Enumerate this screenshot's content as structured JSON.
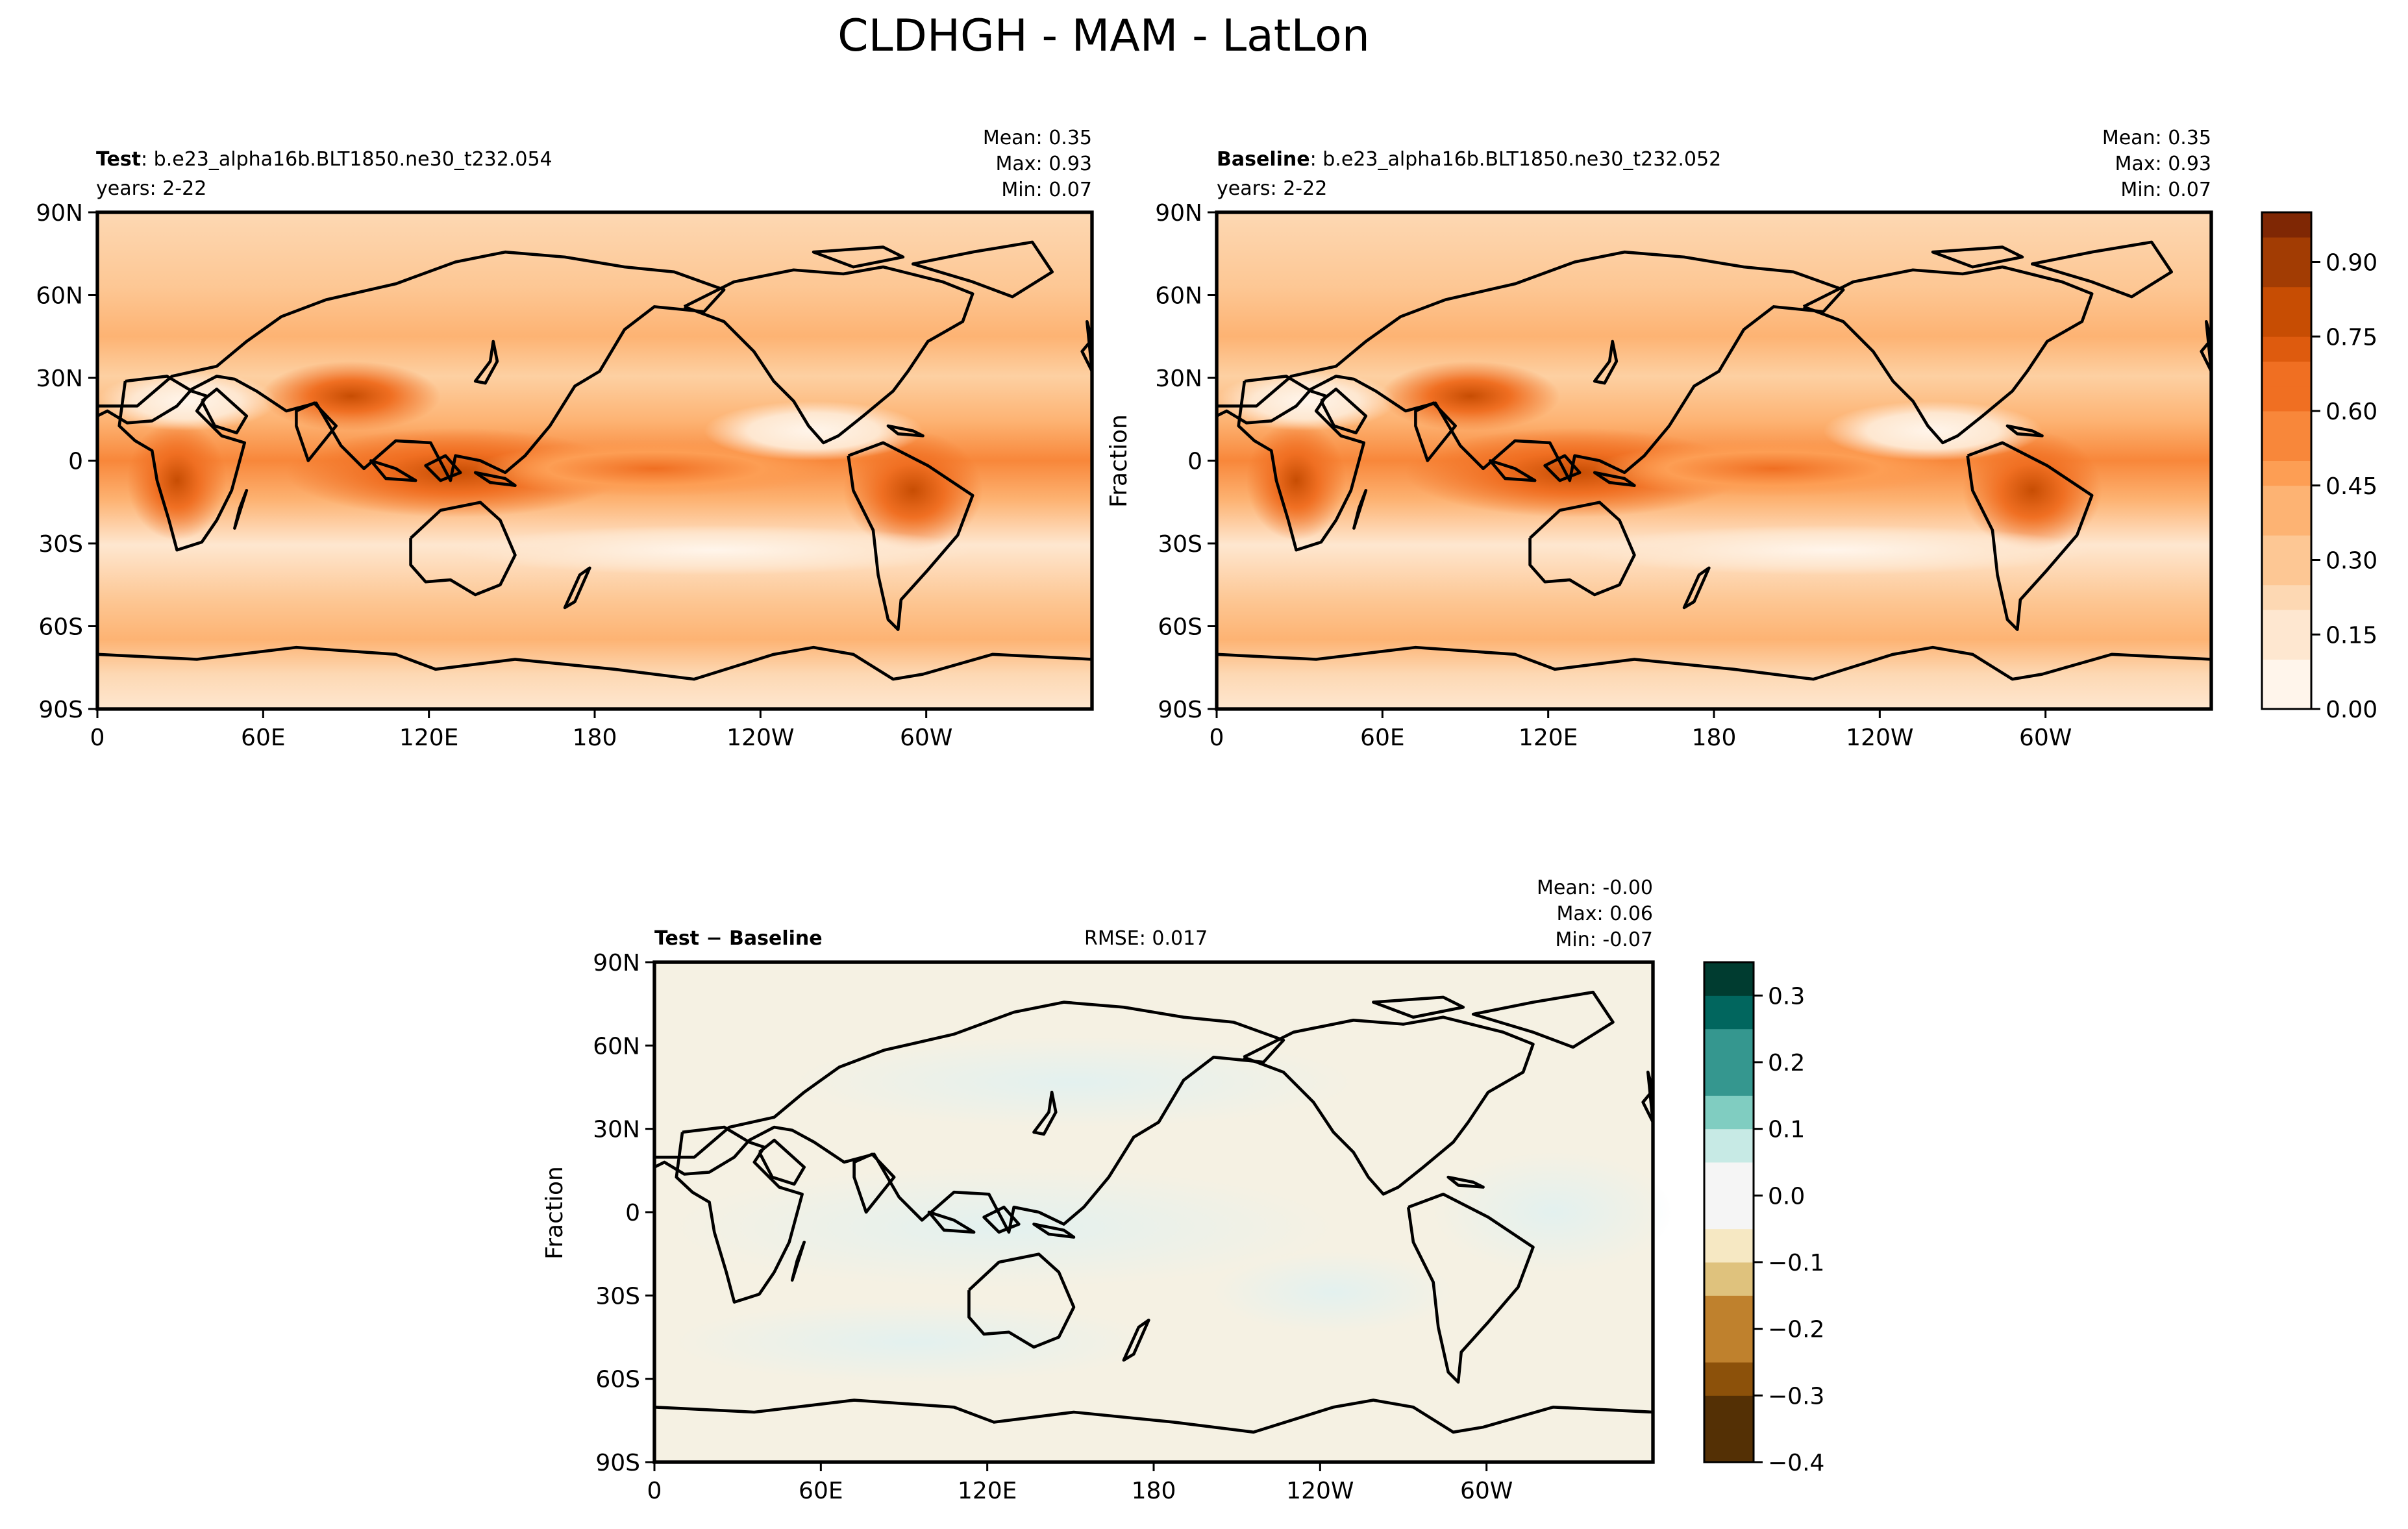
{
  "figure_title": "CLDHGH - MAM - LatLon",
  "colors": {
    "sequential": [
      "#fff5eb",
      "#fee7d0",
      "#fdd8b3",
      "#fdc794",
      "#fdb373",
      "#fd9e54",
      "#f8873a",
      "#f06f22",
      "#de5b0e",
      "#c74d03",
      "#a23c03",
      "#7f2704"
    ],
    "diverging": [
      "#543005",
      "#8c510a",
      "#bf812d",
      "#dfc27d",
      "#f6e8c3",
      "#f5f5f5",
      "#c7eae5",
      "#80cdc1",
      "#35978f",
      "#01665e",
      "#003c30"
    ],
    "diff_field_warm": "#f5f1e3",
    "diff_field_cool": "#e6f2f0"
  },
  "chart_data": [
    {
      "type": "heatmap",
      "panel": "test",
      "label_bold": "Test",
      "case_name": ": b.e23_alpha16b.BLT1850.ne30_t232.054",
      "years": "years: 2-22",
      "stats": {
        "mean": "Mean:  0.35",
        "max": "Max:  0.93",
        "min": "Min:  0.07"
      },
      "ylabel": "",
      "xticks": [
        "0",
        "60E",
        "120E",
        "180",
        "120W",
        "60W"
      ],
      "yticks": [
        "90N",
        "60N",
        "30N",
        "0",
        "30S",
        "60S",
        "90S"
      ],
      "xlim": [
        0,
        360
      ],
      "ylim": [
        -90,
        90
      ],
      "value_range": [
        0.07,
        0.93
      ]
    },
    {
      "type": "heatmap",
      "panel": "baseline",
      "label_bold": "Baseline",
      "case_name": ": b.e23_alpha16b.BLT1850.ne30_t232.052",
      "years": "years: 2-22",
      "stats": {
        "mean": "Mean:  0.35",
        "max": "Max:  0.93",
        "min": "Min:  0.07"
      },
      "ylabel": "Fraction",
      "xticks": [
        "0",
        "60E",
        "120E",
        "180",
        "120W",
        "60W"
      ],
      "yticks": [
        "90N",
        "60N",
        "30N",
        "0",
        "30S",
        "60S",
        "90S"
      ],
      "xlim": [
        0,
        360
      ],
      "ylim": [
        -90,
        90
      ],
      "value_range": [
        0.07,
        0.93
      ],
      "colorbar": {
        "ticks": [
          "0.00",
          "0.15",
          "0.30",
          "0.45",
          "0.60",
          "0.75",
          "0.90"
        ],
        "tick_values": [
          0.0,
          0.15,
          0.3,
          0.45,
          0.6,
          0.75,
          0.9
        ],
        "range": [
          0.0,
          1.0
        ]
      }
    },
    {
      "type": "heatmap",
      "panel": "difference",
      "label": "Test − Baseline",
      "rmse": "RMSE: 0.017",
      "stats": {
        "mean": "Mean: -0.00",
        "max": "Max:  0.06",
        "min": "Min: -0.07"
      },
      "ylabel": "Fraction",
      "xticks": [
        "0",
        "60E",
        "120E",
        "180",
        "120W",
        "60W"
      ],
      "yticks": [
        "90N",
        "60N",
        "30N",
        "0",
        "30S",
        "60S",
        "90S"
      ],
      "xlim": [
        0,
        360
      ],
      "ylim": [
        -90,
        90
      ],
      "value_range": [
        -0.07,
        0.06
      ],
      "colorbar": {
        "ticks": [
          "0.3",
          "0.2",
          "0.1",
          "0.0",
          "−0.1",
          "−0.2",
          "−0.3",
          "−0.4"
        ],
        "tick_values": [
          0.3,
          0.2,
          0.1,
          0.0,
          -0.1,
          -0.2,
          -0.3,
          -0.4
        ],
        "range": [
          -0.4,
          0.35
        ]
      }
    }
  ]
}
